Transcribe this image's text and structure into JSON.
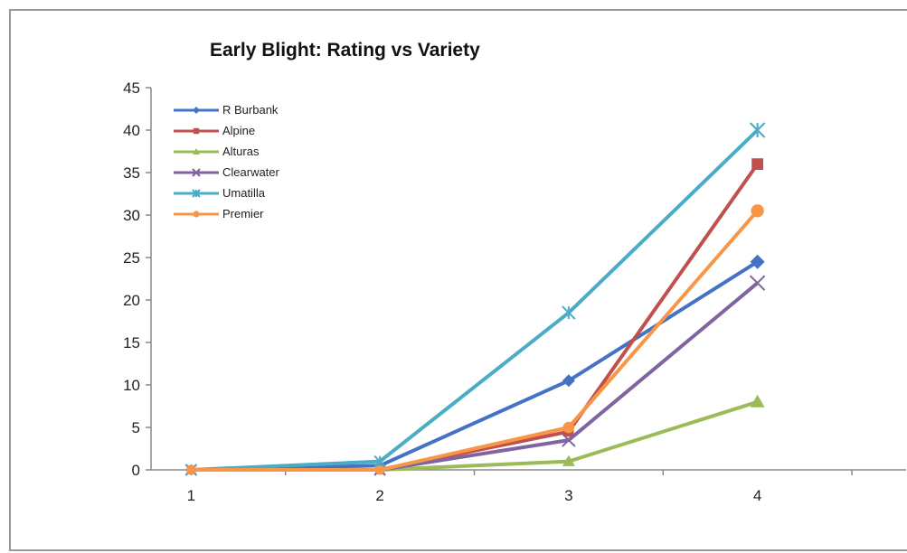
{
  "chart_data": {
    "type": "line",
    "title": "Early Blight: Rating vs Variety",
    "xlabel": "",
    "ylabel": "",
    "categories": [
      "1",
      "2",
      "3",
      "4"
    ],
    "ylim": [
      0,
      45
    ],
    "yticks": [
      0,
      5,
      10,
      15,
      20,
      25,
      30,
      35,
      40,
      45
    ],
    "grid": false,
    "legend_position": "top-left",
    "series": [
      {
        "name": "R Burbank",
        "values": [
          0,
          0.5,
          10.5,
          24.5
        ],
        "color": "#4472C4",
        "marker": "diamond"
      },
      {
        "name": "Alpine",
        "values": [
          0,
          0,
          4.5,
          36
        ],
        "color": "#C0504D",
        "marker": "square"
      },
      {
        "name": "Alturas",
        "values": [
          0,
          0,
          1,
          8
        ],
        "color": "#9BBB59",
        "marker": "triangle"
      },
      {
        "name": "Clearwater",
        "values": [
          0,
          0,
          3.5,
          22
        ],
        "color": "#8064A2",
        "marker": "x"
      },
      {
        "name": "Umatilla",
        "values": [
          0,
          1,
          18.5,
          40
        ],
        "color": "#4BACC6",
        "marker": "star"
      },
      {
        "name": "Premier",
        "values": [
          0,
          0,
          5,
          30.5
        ],
        "color": "#F79646",
        "marker": "circle"
      }
    ]
  }
}
